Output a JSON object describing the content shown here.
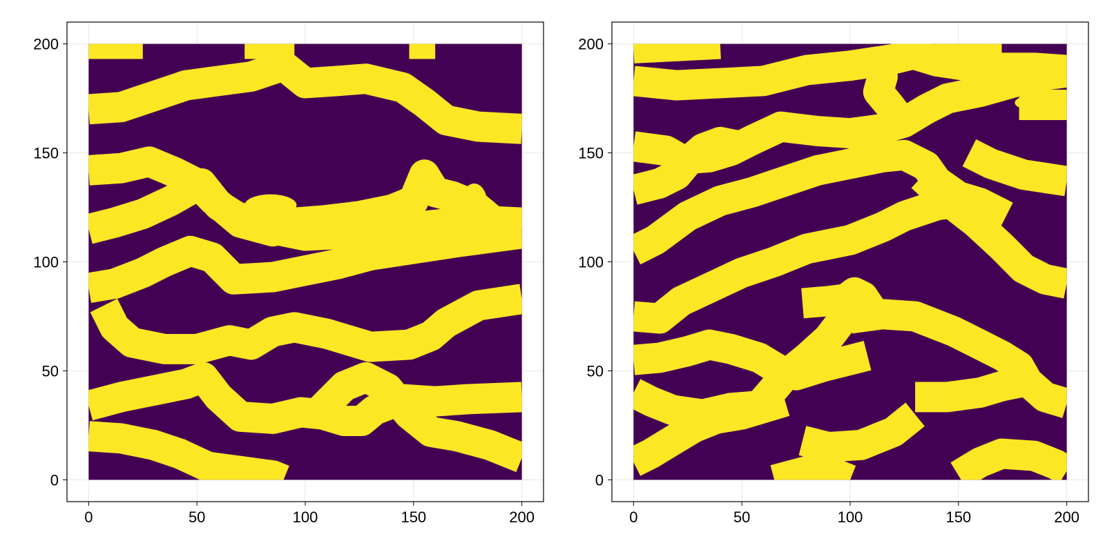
{
  "chart_data": [
    {
      "type": "heatmap",
      "title": "",
      "xlabel": "",
      "ylabel": "",
      "xlim": [
        -10,
        210
      ],
      "ylim": [
        -10,
        210
      ],
      "xticks": [
        0,
        50,
        100,
        150,
        200
      ],
      "yticks": [
        0,
        50,
        100,
        150,
        200
      ],
      "x_extent": [
        0,
        200
      ],
      "y_extent": [
        0,
        200
      ],
      "values": [
        0,
        1
      ],
      "colors": [
        "#440154",
        "#fde725"
      ],
      "grid": true,
      "legend": "none",
      "channels": [
        [
          [
            0,
            170
          ],
          [
            15,
            171
          ],
          [
            30,
            176
          ],
          [
            45,
            181
          ],
          [
            60,
            183
          ],
          [
            75,
            185
          ],
          [
            90,
            190
          ],
          [
            100,
            182
          ],
          [
            115,
            183
          ],
          [
            128,
            184
          ],
          [
            145,
            180
          ],
          [
            155,
            173
          ],
          [
            165,
            165
          ],
          [
            180,
            162
          ],
          [
            200,
            161
          ]
        ],
        [
          [
            0,
            142
          ],
          [
            15,
            143
          ],
          [
            28,
            146
          ],
          [
            40,
            141
          ],
          [
            50,
            136
          ],
          [
            58,
            128
          ],
          [
            70,
            118
          ],
          [
            85,
            114
          ],
          [
            95,
            118
          ],
          [
            108,
            119
          ],
          [
            125,
            121
          ],
          [
            140,
            124
          ],
          [
            150,
            128
          ],
          [
            155,
            140
          ],
          [
            160,
            132
          ],
          [
            168,
            130
          ],
          [
            178,
            126
          ],
          [
            190,
            116
          ],
          [
            200,
            115
          ]
        ],
        [
          [
            0,
            115
          ],
          [
            12,
            118
          ],
          [
            25,
            122
          ],
          [
            38,
            128
          ],
          [
            52,
            136
          ],
          [
            60,
            126
          ],
          [
            68,
            121
          ],
          [
            85,
            115
          ],
          [
            100,
            112
          ],
          [
            120,
            113
          ],
          [
            140,
            115
          ],
          [
            160,
            117
          ],
          [
            180,
            119
          ],
          [
            200,
            118
          ]
        ],
        [
          [
            0,
            88
          ],
          [
            12,
            90
          ],
          [
            25,
            95
          ],
          [
            35,
            100
          ],
          [
            47,
            105
          ],
          [
            57,
            102
          ],
          [
            67,
            92
          ],
          [
            85,
            93
          ],
          [
            100,
            96
          ],
          [
            115,
            99
          ],
          [
            130,
            103
          ],
          [
            150,
            106
          ],
          [
            170,
            109
          ],
          [
            200,
            113
          ]
        ],
        [
          [
            7,
            80
          ],
          [
            12,
            70
          ],
          [
            20,
            63
          ],
          [
            35,
            60
          ],
          [
            50,
            60
          ],
          [
            65,
            64
          ],
          [
            75,
            62
          ],
          [
            85,
            68
          ],
          [
            95,
            70
          ],
          [
            110,
            67
          ],
          [
            130,
            61
          ],
          [
            148,
            62
          ],
          [
            158,
            66
          ],
          [
            165,
            72
          ],
          [
            180,
            80
          ],
          [
            200,
            83
          ]
        ],
        [
          [
            0,
            34
          ],
          [
            15,
            38
          ],
          [
            30,
            41
          ],
          [
            45,
            44
          ],
          [
            53,
            47
          ],
          [
            60,
            38
          ],
          [
            70,
            29
          ],
          [
            85,
            28
          ],
          [
            98,
            31
          ],
          [
            108,
            30
          ],
          [
            118,
            27
          ],
          [
            126,
            27
          ],
          [
            132,
            32
          ],
          [
            145,
            37
          ],
          [
            160,
            36
          ],
          [
            175,
            37
          ],
          [
            200,
            38
          ]
        ],
        [
          [
            105,
            30
          ],
          [
            118,
            43
          ],
          [
            128,
            47
          ],
          [
            138,
            42
          ],
          [
            148,
            30
          ],
          [
            158,
            22
          ],
          [
            170,
            20
          ],
          [
            185,
            16
          ],
          [
            200,
            10
          ]
        ],
        [
          [
            0,
            20
          ],
          [
            15,
            19
          ],
          [
            30,
            16
          ],
          [
            42,
            12
          ],
          [
            55,
            6
          ],
          [
            70,
            4
          ],
          [
            85,
            2
          ],
          [
            90,
            0
          ]
        ],
        [
          [
            0,
            200
          ],
          [
            25,
            200
          ]
        ],
        [
          [
            72,
            200
          ],
          [
            95,
            200
          ]
        ],
        [
          [
            148,
            200
          ],
          [
            160,
            200
          ]
        ]
      ],
      "blobs": [
        [
          84,
          126,
          12,
          5
        ],
        [
          85,
          119,
          14,
          4
        ],
        [
          178,
          127,
          6,
          9
        ]
      ]
    },
    {
      "type": "heatmap",
      "title": "",
      "xlabel": "",
      "ylabel": "",
      "xlim": [
        -10,
        210
      ],
      "ylim": [
        -10,
        210
      ],
      "xticks": [
        0,
        50,
        100,
        150,
        200
      ],
      "yticks": [
        0,
        50,
        100,
        150,
        200
      ],
      "x_extent": [
        0,
        200
      ],
      "y_extent": [
        0,
        200
      ],
      "values": [
        0,
        1
      ],
      "colors": [
        "#440154",
        "#fde725"
      ],
      "grid": true,
      "legend": "none",
      "channels": [
        [
          [
            0,
            183
          ],
          [
            20,
            181
          ],
          [
            40,
            182
          ],
          [
            60,
            183
          ],
          [
            80,
            188
          ],
          [
            100,
            190
          ],
          [
            120,
            193
          ],
          [
            140,
            198
          ],
          [
            160,
            200
          ],
          [
            170,
            200
          ]
        ],
        [
          [
            120,
            200
          ],
          [
            130,
            195
          ],
          [
            140,
            192
          ],
          [
            160,
            189
          ],
          [
            185,
            189
          ],
          [
            200,
            188
          ]
        ],
        [
          [
            112,
            192
          ],
          [
            115,
            185
          ],
          [
            113,
            178
          ],
          [
            118,
            172
          ],
          [
            125,
            163
          ]
        ],
        [
          [
            0,
            153
          ],
          [
            15,
            151
          ],
          [
            22,
            147
          ],
          [
            35,
            148
          ],
          [
            45,
            151
          ],
          [
            55,
            156
          ],
          [
            68,
            162
          ],
          [
            85,
            160
          ],
          [
            100,
            159
          ],
          [
            115,
            161
          ],
          [
            125,
            164
          ],
          [
            135,
            170
          ],
          [
            145,
            175
          ],
          [
            160,
            178
          ],
          [
            185,
            185
          ],
          [
            200,
            187
          ]
        ],
        [
          [
            0,
            133
          ],
          [
            12,
            136
          ],
          [
            20,
            140
          ],
          [
            25,
            146
          ],
          [
            32,
            152
          ],
          [
            40,
            155
          ],
          [
            50,
            153
          ]
        ],
        [
          [
            0,
            105
          ],
          [
            10,
            110
          ],
          [
            25,
            121
          ],
          [
            40,
            128
          ],
          [
            55,
            132
          ],
          [
            70,
            137
          ],
          [
            85,
            142
          ],
          [
            100,
            145
          ],
          [
            115,
            148
          ],
          [
            125,
            149
          ],
          [
            135,
            144
          ],
          [
            140,
            137
          ],
          [
            150,
            130
          ],
          [
            160,
            127
          ],
          [
            172,
            121
          ]
        ],
        [
          [
            0,
            75
          ],
          [
            12,
            74
          ],
          [
            22,
            82
          ],
          [
            35,
            88
          ],
          [
            50,
            95
          ],
          [
            65,
            100
          ],
          [
            80,
            106
          ],
          [
            90,
            108
          ],
          [
            100,
            110
          ],
          [
            115,
            116
          ],
          [
            125,
            121
          ],
          [
            140,
            126
          ],
          [
            148,
            127
          ]
        ],
        [
          [
            133,
            139
          ],
          [
            145,
            128
          ],
          [
            158,
            118
          ],
          [
            170,
            107
          ],
          [
            180,
            97
          ],
          [
            190,
            92
          ],
          [
            200,
            90
          ]
        ],
        [
          [
            78,
            81
          ],
          [
            90,
            82
          ],
          [
            98,
            83
          ],
          [
            102,
            86
          ],
          [
            106,
            84
          ],
          [
            110,
            78
          ]
        ],
        [
          [
            102,
            87
          ],
          [
            100,
            78
          ],
          [
            90,
            65
          ],
          [
            80,
            56
          ],
          [
            70,
            48
          ],
          [
            65,
            42
          ],
          [
            58,
            34
          ],
          [
            45,
            33
          ],
          [
            32,
            30
          ],
          [
            18,
            32
          ],
          [
            8,
            36
          ],
          [
            0,
            40
          ]
        ],
        [
          [
            0,
            55
          ],
          [
            12,
            56
          ],
          [
            25,
            59
          ],
          [
            35,
            62
          ],
          [
            45,
            60
          ],
          [
            58,
            56
          ],
          [
            68,
            50
          ],
          [
            75,
            48
          ],
          [
            88,
            52
          ],
          [
            100,
            55
          ],
          [
            108,
            57
          ]
        ],
        [
          [
            100,
            74
          ],
          [
            115,
            76
          ],
          [
            130,
            75
          ],
          [
            148,
            68
          ],
          [
            160,
            62
          ],
          [
            170,
            57
          ],
          [
            178,
            52
          ],
          [
            182,
            45
          ],
          [
            190,
            38
          ],
          [
            200,
            35
          ]
        ],
        [
          [
            130,
            38
          ],
          [
            145,
            38
          ],
          [
            160,
            40
          ],
          [
            170,
            43
          ],
          [
            180,
            45
          ]
        ],
        [
          [
            0,
            8
          ],
          [
            8,
            12
          ],
          [
            18,
            18
          ],
          [
            28,
            24
          ],
          [
            38,
            28
          ],
          [
            50,
            30
          ],
          [
            60,
            33
          ],
          [
            70,
            36
          ]
        ],
        [
          [
            78,
            18
          ],
          [
            90,
            15
          ],
          [
            105,
            16
          ],
          [
            120,
            22
          ],
          [
            130,
            30
          ]
        ],
        [
          [
            150,
            2
          ],
          [
            160,
            8
          ],
          [
            170,
            12
          ],
          [
            185,
            11
          ],
          [
            195,
            7
          ],
          [
            200,
            4
          ]
        ],
        [
          [
            65,
            0
          ],
          [
            80,
            4
          ],
          [
            95,
            2
          ],
          [
            100,
            0
          ]
        ],
        [
          [
            155,
            150
          ],
          [
            165,
            145
          ],
          [
            180,
            140
          ],
          [
            200,
            137
          ]
        ],
        [
          [
            178,
            172
          ],
          [
            200,
            172
          ]
        ],
        [
          [
            0,
            198
          ],
          [
            20,
            199
          ],
          [
            40,
            200
          ]
        ]
      ],
      "blobs": [
        [
          188,
          173,
          12,
          4
        ],
        [
          86,
          80,
          6,
          3
        ]
      ]
    }
  ]
}
